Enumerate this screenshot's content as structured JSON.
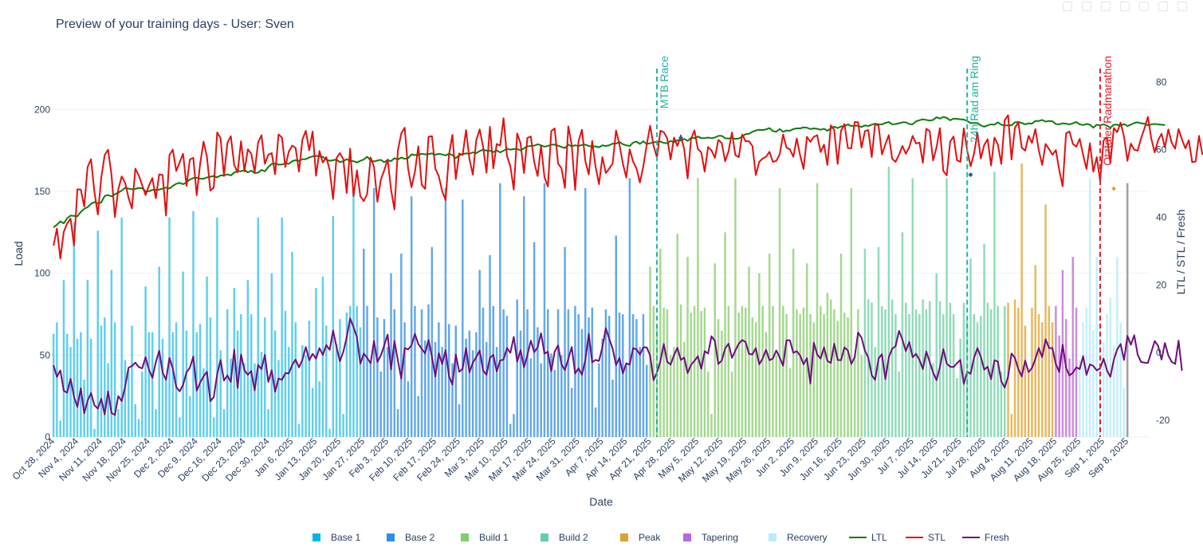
{
  "chart_data": {
    "type": "bar+line",
    "title": "Preview of your training days - User: Sven",
    "xlabel": "Date",
    "ylabel": "Load",
    "y2label": "LTL / STL / Fresh",
    "ylim": [
      0,
      225
    ],
    "y2lim": [
      -25,
      84
    ],
    "y_ticks": [
      0,
      50,
      100,
      150,
      200
    ],
    "y2_ticks": [
      -20,
      0,
      20,
      40,
      60,
      80
    ],
    "start_date": "2024-10-28",
    "num_days": 322,
    "x_tick_labels": [
      "Oct 28, 2024",
      "Nov 4, 2024",
      "Nov 11, 2024",
      "Nov 18, 2024",
      "Nov 25, 2024",
      "Dec 2, 2024",
      "Dec 9, 2024",
      "Dec 16, 2024",
      "Dec 23, 2024",
      "Dec 30, 2024",
      "Jan 6, 2025",
      "Jan 13, 2025",
      "Jan 20, 2025",
      "Jan 27, 2025",
      "Feb 3, 2025",
      "Feb 10, 2025",
      "Feb 17, 2025",
      "Feb 24, 2025",
      "Mar 3, 2025",
      "Mar 10, 2025",
      "Mar 17, 2025",
      "Mar 24, 2025",
      "Mar 31, 2025",
      "Apr 7, 2025",
      "Apr 14, 2025",
      "Apr 21, 2025",
      "Apr 28, 2025",
      "May 5, 2025",
      "May 12, 2025",
      "May 19, 2025",
      "May 26, 2025",
      "Jun 2, 2025",
      "Jun 9, 2025",
      "Jun 16, 2025",
      "Jun 23, 2025",
      "Jun 30, 2025",
      "Jul 7, 2025",
      "Jul 14, 2025",
      "Jul 21, 2025",
      "Jul 28, 2025",
      "Aug 4, 2025",
      "Aug 11, 2025",
      "Aug 18, 2025",
      "Aug 25, 2025",
      "Sep 1, 2025",
      "Sep 8, 2025"
    ],
    "phases": [
      {
        "name": "Base 1",
        "color": "#5ecfee",
        "start_day": 0,
        "end_day": 91
      },
      {
        "name": "Base 2",
        "color": "#62a8ea",
        "start_day": 91,
        "end_day": 175
      },
      {
        "name": "Build 1",
        "color": "#a3d98e",
        "start_day": 175,
        "end_day": 238
      },
      {
        "name": "Build 2",
        "color": "#8fdcb7",
        "start_day": 238,
        "end_day": 280
      },
      {
        "name": "Peak",
        "color": "#e9b75d",
        "start_day": 280,
        "end_day": 294
      },
      {
        "name": "Tapering",
        "color": "#cd8be0",
        "start_day": 294,
        "end_day": 301
      },
      {
        "name": "Recovery",
        "color": "#c4effb",
        "start_day": 301,
        "end_day": 315
      }
    ],
    "load_values": [
      63,
      70,
      10,
      96,
      63,
      55,
      131,
      60,
      64,
      35,
      96,
      60,
      5,
      126,
      68,
      73,
      45,
      102,
      70,
      17,
      134,
      47,
      41,
      68,
      20,
      11,
      40,
      92,
      64,
      64,
      17,
      104,
      60,
      36,
      134,
      64,
      70,
      12,
      101,
      65,
      25,
      138,
      64,
      69,
      42,
      98,
      73,
      12,
      134,
      53,
      17,
      78,
      48,
      91,
      65,
      75,
      45,
      96,
      75,
      45,
      134,
      52,
      73,
      17,
      100,
      65,
      47,
      134,
      77,
      55,
      113,
      70,
      8,
      56,
      50,
      71,
      30,
      91,
      34,
      98,
      68,
      5,
      135,
      57,
      72,
      14,
      76,
      80,
      150,
      80,
      67,
      115,
      80,
      45,
      152,
      73,
      40,
      72,
      55,
      100,
      78,
      17,
      112,
      70,
      34,
      147,
      80,
      25,
      78,
      59,
      81,
      116,
      58,
      70,
      55,
      152,
      69,
      45,
      68,
      20,
      145,
      60,
      65,
      53,
      64,
      102,
      79,
      58,
      111,
      80,
      55,
      155,
      78,
      74,
      8,
      14,
      84,
      65,
      147,
      78,
      48,
      119,
      67,
      45,
      155,
      78,
      51,
      41,
      78,
      50,
      116,
      78,
      30,
      80,
      75,
      66,
      152,
      73,
      79,
      18,
      45,
      60,
      78,
      74,
      35,
      123,
      76,
      75,
      45,
      158,
      75,
      72,
      55,
      75,
      44,
      104,
      80,
      68,
      115,
      79,
      78,
      50,
      55,
      124,
      81,
      58,
      110,
      76,
      80,
      158,
      77,
      79,
      40,
      14,
      106,
      72,
      65,
      125,
      80,
      40,
      158,
      76,
      80,
      79,
      104,
      73,
      70,
      100,
      80,
      64,
      112,
      80,
      50,
      152,
      80,
      75,
      42,
      115,
      78,
      75,
      79,
      106,
      75,
      70,
      155,
      80,
      75,
      88,
      84,
      78,
      71,
      112,
      76,
      73,
      152,
      50,
      78,
      50,
      115,
      84,
      82,
      55,
      116,
      80,
      78,
      165,
      84,
      75,
      40,
      125,
      82,
      75,
      158,
      78,
      75,
      84,
      78,
      83,
      45,
      100,
      83,
      75,
      158,
      82,
      75,
      36,
      60,
      82,
      71,
      109,
      75,
      70,
      74,
      118,
      82,
      78,
      162,
      80,
      40,
      80,
      82,
      14,
      84,
      79,
      167,
      68,
      40,
      79,
      105,
      75,
      70,
      142,
      80,
      70,
      80,
      62,
      102,
      72,
      48,
      110,
      79,
      47,
      70,
      79,
      158,
      65,
      110,
      70,
      58,
      75,
      85,
      56,
      110,
      70,
      30,
      155
    ],
    "ltl_values": [
      37,
      37.8,
      38.8,
      38.2,
      39.7,
      40.5,
      40.4,
      40.3,
      41.6,
      42.5,
      43,
      44,
      44.5,
      44.1,
      44.4,
      46.3,
      46.6,
      46.2,
      46.8,
      47.3,
      47.9,
      48.7,
      48.5,
      48.3,
      48.4,
      48.7,
      48.6,
      47.7,
      47.7,
      48.1,
      48.1,
      48.2,
      48.5,
      48.8,
      48.5,
      49.3,
      49.9,
      50.2,
      49.8,
      50.3,
      51.2,
      51.6,
      51.7,
      51.4,
      51.4,
      51.8,
      52,
      52.2,
      51.8,
      52.4,
      52.4,
      52.7,
      52.4,
      53.2,
      53.7,
      53.6,
      54,
      53.3,
      53.8,
      53.1,
      53.2,
      54,
      53.6,
      54.9,
      55.8,
      55.9,
      55.6,
      55.6,
      56,
      55.8,
      56.6,
      56.9,
      56.7,
      57.2,
      57.2,
      57.7,
      58,
      58.2,
      58,
      57.9,
      57.1,
      56.7,
      56.9,
      57.1,
      56.3,
      56.6,
      57.2,
      56.7,
      56.6,
      56.2,
      56.7,
      57.1,
      57.9,
      56.9,
      56.5,
      56.8,
      57,
      56.3,
      56.9,
      56.6,
      57.5,
      57.1,
      57.7,
      57.3,
      57.5,
      58.6,
      58.4,
      58.5,
      58.8,
      58.6,
      58.7,
      58.9,
      58.5,
      58.8,
      58.6,
      58.3,
      58.8,
      58.4,
      57.5,
      58.4,
      58.7,
      58.9,
      58.8,
      59.2,
      59,
      59.6,
      60,
      59.7,
      59.7,
      59.3,
      59.8,
      59.2,
      59.7,
      60.3,
      60,
      60.2,
      60.2,
      59.8,
      60.4,
      61,
      61.1,
      61.2,
      61.6,
      61.3,
      60.9,
      61.1,
      61.5,
      61.5,
      61.2,
      60.8,
      60.5,
      61.5,
      61,
      61.3,
      61.1,
      61.4,
      61.5,
      61.1,
      60.9,
      61,
      60.7,
      61.3,
      61.1,
      61.3,
      61.8,
      61.8,
      62.3,
      61.6,
      61.3,
      61.1,
      62.1,
      62.4,
      61.7,
      62.5,
      61.7,
      61.9,
      62.2,
      62.3,
      62.4,
      62,
      61.9,
      62.6,
      62.2,
      62.8,
      62.7,
      63.2,
      62.6,
      63.5,
      63.4,
      63.9,
      63.4,
      63.4,
      63.6,
      63.4,
      63.6,
      64.1,
      64.1,
      63.4,
      63.3,
      63.5,
      63.2,
      63.3,
      63.9,
      64.6,
      64.7,
      65.3,
      65.7,
      65.9,
      65.8,
      66,
      66.4,
      65.5,
      65.3,
      66.1,
      65.3,
      65.7,
      65.6,
      66.1,
      66.3,
      66.3,
      66.6,
      66.5,
      66.1,
      66.3,
      66.2,
      65.9,
      66.2,
      65.6,
      66.3,
      66.8,
      66.4,
      66.9,
      66.9,
      67.5,
      67,
      67.1,
      67.1,
      66.7,
      67.2,
      67,
      67.4,
      67.7,
      67.5,
      67.5,
      67.9,
      68.2,
      67.5,
      67.6,
      67.8,
      68.1,
      68.1,
      67.6,
      67.5,
      68.4,
      68.7,
      69,
      68.8,
      68.6,
      68.8,
      69.6,
      69.2,
      69.7,
      69.4,
      68.7,
      69.2,
      69.1,
      69,
      68.9,
      68.5,
      67.9,
      67.9,
      67.9,
      67.2,
      66.8,
      67.2,
      67.5,
      67.4,
      68.1,
      67.4,
      67.2,
      67.2,
      67.2,
      68.1,
      68.2,
      67.9,
      67.5,
      67.8,
      67.7,
      68.5,
      68.5,
      68.8,
      68.3,
      68.5,
      68.4,
      67.6,
      67.5,
      67.8,
      67.7,
      67.5,
      67.8,
      68.2,
      67.5,
      67.3,
      67.6,
      67.4,
      66.5,
      67.4,
      67.2,
      67.5,
      67.1,
      66.5,
      67.4,
      67.4,
      67.1,
      67.6,
      67,
      67.4,
      67.9,
      68.1,
      67.8,
      67.7,
      67.2,
      67.5,
      67.6,
      67.5,
      67.4,
      67.3
    ],
    "stl_values": [
      31.6,
      36.7,
      27.8,
      35.7,
      38.2,
      39.6,
      31.7,
      48.3,
      48.2,
      43.2,
      54.9,
      57.2,
      47.5,
      40.8,
      51.7,
      58.4,
      60,
      52.6,
      40.1,
      48.3,
      52.1,
      50.2,
      45.8,
      42.6,
      54.4,
      52.4,
      49.5,
      46.6,
      49.4,
      51.6,
      45.6,
      52.7,
      52.5,
      40.5,
      58.4,
      60,
      53.7,
      56.3,
      58.8,
      49.3,
      57.1,
      57.6,
      46.5,
      55.8,
      62.4,
      57.9,
      47.9,
      48.8,
      65.1,
      63.4,
      52.2,
      62,
      64,
      55.5,
      53.3,
      62.5,
      53.6,
      60.1,
      58.8,
      53.4,
      62.1,
      64.3,
      55.8,
      58.5,
      59,
      52.7,
      64.5,
      63.6,
      54.9,
      59.4,
      61.2,
      60.6,
      53.5,
      63,
      65.6,
      59.8,
      65.4,
      52.3,
      59.6,
      56.2,
      57.8,
      54,
      45.4,
      57.5,
      59,
      57.2,
      47.2,
      60.3,
      46.3,
      53.9,
      46.2,
      44.8,
      46.9,
      57.7,
      55,
      44.6,
      51.1,
      53.9,
      57.1,
      48.2,
      42.3,
      59.8,
      64.8,
      66.5,
      54.4,
      48.9,
      53.4,
      61,
      49.6,
      48.4,
      63.8,
      64,
      54.4,
      52.2,
      47.7,
      45.1,
      58.5,
      64.4,
      51.3,
      58.9,
      58.4,
      65.8,
      57.2,
      52.6,
      62.8,
      66,
      60.9,
      53.2,
      66.8,
      54.5,
      61.7,
      61.2,
      69.3,
      58.2,
      55.1,
      48.2,
      64.8,
      61.8,
      53.1,
      63.5,
      63.9,
      56.3,
      52.2,
      61.2,
      51.9,
      49.1,
      65.5,
      66.3,
      55.9,
      54.5,
      48.7,
      66.9,
      61.4,
      48.1,
      62.5,
      65.9,
      56.6,
      52.7,
      62.6,
      54.9,
      49.8,
      57.8,
      53.1,
      54.4,
      55.9,
      65.7,
      61.5,
      55.9,
      51.8,
      60.1,
      56.5,
      54.5,
      50.3,
      55.1,
      61.5,
      67.1,
      61.2,
      57.7,
      65.6,
      65.2,
      63.4,
      57.1,
      63.6,
      61.1,
      64.2,
      60.1,
      51.5,
      63.2,
      65.7,
      60.2,
      59.2,
      53.5,
      60.8,
      59.8,
      57.6,
      62.9,
      62,
      56.6,
      59.5,
      65.1,
      58.4,
      57.8,
      64.5,
      62.5,
      62.5,
      61.1,
      52.5,
      56.4,
      57.4,
      57.9,
      59.4,
      56.4,
      56.7,
      58.6,
      64.5,
      60.6,
      60.1,
      57.9,
      63.3,
      58.3,
      54.3,
      63.8,
      62.3,
      63.8,
      64.3,
      59.3,
      61.5,
      55.5,
      67.2,
      65.9,
      55.8,
      65.6,
      67.6,
      60.5,
      60.4,
      68.2,
      68.1,
      60.6,
      65.5,
      65.8,
      57.8,
      67.6,
      67.1,
      58.6,
      61.6,
      64.3,
      57.3,
      56.4,
      58.5,
      61.1,
      58.8,
      60.7,
      64.1,
      61.8,
      62.1,
      56.1,
      66.2,
      65.5,
      56.8,
      60.7,
      66.4,
      53.7,
      52.4,
      62.4,
      63.9,
      56.9,
      56.4,
      66.3,
      59.8,
      55.1,
      58.8,
      64.9,
      57.4,
      61.4,
      63.1,
      55.3,
      63.6,
      61.5,
      55.8,
      68.7,
      70.2,
      57.1,
      66.5,
      68.1,
      60.6,
      59.7,
      64.1,
      62,
      66.1,
      59.8,
      55.5,
      61.7,
      60.2,
      58.5,
      59.9,
      54,
      49.2,
      64.8,
      65.4,
      61.7,
      60.9,
      63.2,
      58.5,
      54.3,
      61.9,
      53.5,
      57.8,
      50.8,
      62.7,
      63.7,
      56,
      66.4,
      65.2,
      68,
      63.9,
      56.7,
      61.8,
      60,
      59.7,
      63.4,
      66.3,
      69.7,
      63.3,
      59.2,
      62.8,
      64.7,
      60.7,
      66,
      62,
      60.3,
      66.1,
      63,
      60.4,
      62.8,
      56.3,
      56.5,
      64.1,
      58.5
    ],
    "fresh_values": [
      -3.8,
      -7.2,
      -5.3,
      -11.3,
      -11.9,
      -7.8,
      -13.1,
      -16.1,
      -10.6,
      -18,
      -14.3,
      -12,
      -15.6,
      -16.6,
      -13.7,
      -18.3,
      -11.5,
      -17.9,
      -18.5,
      -12.9,
      -14.4,
      -10.1,
      -4.5,
      -4,
      -3,
      -4.3,
      -4.7,
      -1.4,
      -5.1,
      -7.5,
      -2.9,
      0.5,
      -5.9,
      -8.1,
      -1.6,
      -4.8,
      -10.2,
      -11.5,
      -9.6,
      -5.9,
      -4.5,
      -1.2,
      -11.3,
      -8.9,
      -7.1,
      -5.7,
      -14.4,
      -13.2,
      -6.5,
      -2.2,
      -8.3,
      -6.8,
      -8.7,
      0.8,
      -10.5,
      -0.6,
      -5.3,
      -6.6,
      -5.5,
      -11.2,
      -3.7,
      -4.9,
      -0.7,
      -8.7,
      -5.3,
      -11.6,
      -7.7,
      -8.1,
      -6.1,
      -6.2,
      -3.7,
      -2.1,
      -4.4,
      -2.2,
      1.6,
      -2.3,
      -0.4,
      -1.8,
      1.3,
      -0.7,
      2.2,
      0.8,
      6.5,
      1.7,
      -2.6,
      0.2,
      4.5,
      10.1,
      7.5,
      4.5,
      -3.3,
      -0.3,
      -1.6,
      -3.2,
      3.4,
      -2.8,
      -0.9,
      2.1,
      5.3,
      -5,
      3.4,
      -2.3,
      -7.7,
      1.3,
      0.9,
      2.1,
      5.5,
      2.5,
      1.1,
      -0.3,
      3.7,
      -1.3,
      -7.1,
      -0.2,
      -3.4,
      0.7,
      -7,
      -9.5,
      -0.6,
      -5.7,
      -4.8,
      1.3,
      -5.9,
      -3,
      -1.4,
      0.6,
      -5.3,
      -6.6,
      -1.6,
      -0.7,
      -5.6,
      -2.4,
      -2.1,
      1.3,
      -0.1,
      4.6,
      -2.7,
      0.7,
      -4.4,
      -0.8,
      3.5,
      0.1,
      1.5,
      5.7,
      -0.3,
      0.2,
      -5.5,
      0.3,
      2.1,
      -3.5,
      -5.2,
      -1.9,
      1.6,
      -6.2,
      -4.7,
      -6.6,
      -2.2,
      5.5,
      -2.9,
      -2.2,
      -2.5,
      1.6,
      7.2,
      4.1,
      1.1,
      -3.7,
      -1.6,
      -6.2,
      -3.2,
      -3.6,
      1.3,
      0.9,
      -0.6,
      1.5,
      1.5,
      -0.9,
      -8.2,
      -5.9,
      -2.6,
      2.5,
      -2.7,
      -3.6,
      -0.8,
      1.4,
      -2.2,
      -1.5,
      -6.1,
      -3.6,
      -2.5,
      -1.1,
      -4.8,
      0.4,
      -0.3,
      4.8,
      3.4,
      -3.4,
      -2.4,
      1.2,
      2.6,
      -1.6,
      0.6,
      2.6,
      3.7,
      3.1,
      -0.4,
      -0.6,
      1.3,
      -3.5,
      -1.8,
      0.8,
      -2.3,
      -1.8,
      0.6,
      -1.5,
      -3.9,
      3.6,
      3.6,
      -0.1,
      0.4,
      -0.9,
      -3.5,
      -1.7,
      -9.2,
      2.9,
      -0.6,
      -1.8,
      1.5,
      -2.5,
      -3.1,
      2.6,
      -2.2,
      -2.3,
      1.5,
      0.6,
      -3.4,
      -1.4,
      5.9,
      4.4,
      0.5,
      -1.5,
      -6.7,
      -8.1,
      -1.8,
      -0.5,
      -7.9,
      -1.4,
      1.1,
      1.9,
      6.4,
      3.8,
      0.4,
      3.1,
      -1.4,
      -0.4,
      -2.2,
      -4.9,
      0.3,
      -2.8,
      -5.9,
      -8.2,
      -4.3,
      1,
      -3.3,
      -4.2,
      -4.3,
      -3.2,
      -2.2,
      -9.3,
      -5.7,
      -6.3,
      -1.6,
      1.3,
      -1.3,
      -5.1,
      -4.2,
      -7.9,
      -2.3,
      -2.7,
      -8.5,
      -10.4,
      -7.1,
      -0.3,
      -1.6,
      -4.9,
      -7.1,
      -2.4,
      -5.8,
      -4.6,
      -1.9,
      1.3,
      -1.4,
      3.9,
      1.3,
      1.3,
      -3.4,
      -5.8,
      2.3,
      -4.5,
      -6.8,
      -6,
      -4.4,
      -4.9,
      -1.1,
      -6.6,
      -3.5,
      -4,
      -5.3,
      -4.7,
      -1.8,
      -5.3,
      -7.2,
      -2.2,
      0.9,
      2.5,
      -2.2,
      4.9,
      2.3,
      5.1,
      -0.6,
      -2.8,
      -3,
      -3.1,
      0.1,
      3.4,
      2,
      -2.1,
      2.8,
      -0.9,
      -2.8,
      -3.4,
      3.5,
      -5.4
    ],
    "extra_series_points": [
      {
        "day": 184,
        "y2": 63.5,
        "color": "#1f5fa0"
      },
      {
        "day": 269,
        "y2": 52.6,
        "color": "#1f5fa0"
      },
      {
        "day": 311,
        "y2": 48.5,
        "color": "#e8a336"
      }
    ],
    "annotations": [
      {
        "label": "MTB Race",
        "date": "2025-04-23",
        "day": 177,
        "color": "#20b2a0"
      },
      {
        "label": "24h Rad am Ring",
        "date": "2025-07-23",
        "day": 268,
        "color": "#20b2a0"
      },
      {
        "label": "Ötztaler Radmarathon",
        "date": "2025-08-31",
        "day": 307,
        "color": "#e3202c"
      }
    ],
    "legend": [
      {
        "name": "Base 1",
        "kind": "bar",
        "color": "#00b4e6"
      },
      {
        "name": "Base 2",
        "kind": "bar",
        "color": "#2f8fe8"
      },
      {
        "name": "Build 1",
        "kind": "bar",
        "color": "#7fcf6b"
      },
      {
        "name": "Build 2",
        "kind": "bar",
        "color": "#63cfa3"
      },
      {
        "name": "Peak",
        "kind": "bar",
        "color": "#dba231"
      },
      {
        "name": "Tapering",
        "kind": "bar",
        "color": "#b968d8"
      },
      {
        "name": "Recovery",
        "kind": "bar",
        "color": "#b9ecf8"
      },
      {
        "name": "LTL",
        "kind": "line",
        "color": "#0a7d0a"
      },
      {
        "name": "STL",
        "kind": "line",
        "color": "#e30f0f"
      },
      {
        "name": "Fresh",
        "kind": "line",
        "color": "#6d0d7d"
      }
    ],
    "series_colors": {
      "ltl": "#0a7d0a",
      "stl": "#e30f0f",
      "fresh": "#6d0d7d",
      "tail_bars": "#a0a0a0"
    }
  }
}
